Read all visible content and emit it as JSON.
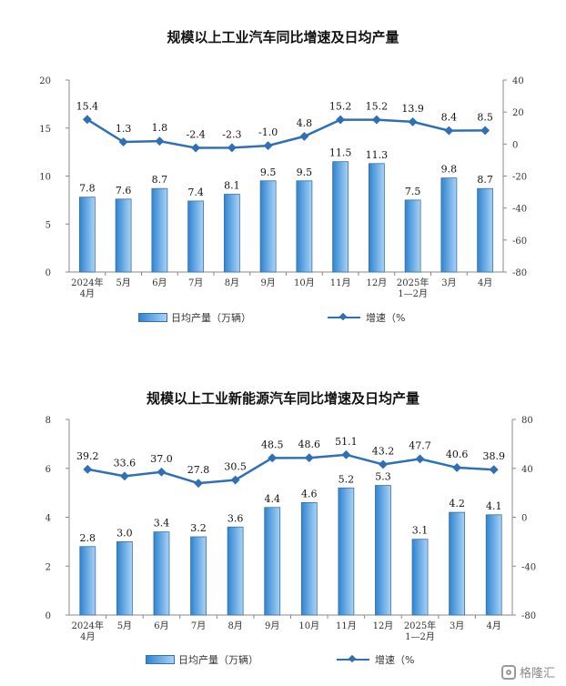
{
  "chart_data": [
    {
      "type": "bar+line",
      "title": "规模以上工业汽车同比增速及日均产量",
      "categories": [
        "2024年\n4月",
        "5月",
        "6月",
        "7月",
        "8月",
        "9月",
        "10月",
        "11月",
        "12月",
        "2025年\n1—2月",
        "3月",
        "4月"
      ],
      "series": [
        {
          "name": "日均产量（万辆）",
          "type": "bar",
          "axis": "left",
          "values": [
            7.8,
            7.6,
            8.7,
            7.4,
            8.1,
            9.5,
            9.5,
            11.5,
            11.3,
            7.5,
            9.8,
            8.7
          ]
        },
        {
          "name": "增速（%",
          "type": "line",
          "axis": "right",
          "values": [
            15.4,
            1.3,
            1.8,
            -2.4,
            -2.3,
            -1.0,
            4.8,
            15.2,
            15.2,
            13.9,
            8.4,
            8.5
          ]
        }
      ],
      "ylim_left": [
        0,
        20
      ],
      "yticks_left": [
        0,
        5,
        10,
        15,
        20
      ],
      "ylim_right": [
        -80,
        40
      ],
      "yticks_right": [
        -80,
        -60,
        -40,
        -20,
        0,
        20,
        40
      ],
      "legend": "bottom"
    },
    {
      "type": "bar+line",
      "title": "规模以上工业新能源汽车同比增速及日均产量",
      "categories": [
        "2024年\n4月",
        "5月",
        "6月",
        "7月",
        "8月",
        "9月",
        "10月",
        "11月",
        "12月",
        "2025年\n1—2月",
        "3月",
        "4月"
      ],
      "series": [
        {
          "name": "日均产量（万辆）",
          "type": "bar",
          "axis": "left",
          "values": [
            2.8,
            3.0,
            3.4,
            3.2,
            3.6,
            4.4,
            4.6,
            5.2,
            5.3,
            3.1,
            4.2,
            4.1
          ]
        },
        {
          "name": "增速（%",
          "type": "line",
          "axis": "right",
          "values": [
            39.2,
            33.6,
            37.0,
            27.8,
            30.5,
            48.5,
            48.6,
            51.1,
            43.2,
            47.7,
            40.6,
            38.9
          ]
        }
      ],
      "ylim_left": [
        0,
        8
      ],
      "yticks_left": [
        0,
        2,
        4,
        6,
        8
      ],
      "ylim_right": [
        -80,
        80
      ],
      "yticks_right": [
        -80,
        -40,
        0,
        40,
        80
      ],
      "legend": "bottom"
    }
  ],
  "colors": {
    "bar_dark": "#2f84d1",
    "bar_light": "#a9d3f7",
    "bar_border": "#3b6fa3",
    "line": "#2e6fb7"
  },
  "watermark": {
    "text": "格隆汇",
    "icon": "gelonghui-logo-icon"
  }
}
